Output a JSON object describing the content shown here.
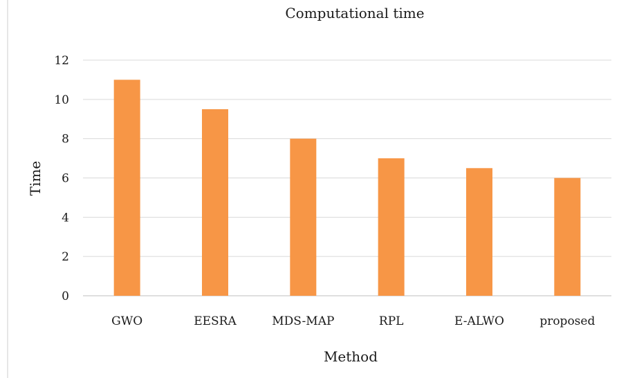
{
  "chart_data": {
    "type": "bar",
    "title": "Computational time",
    "xlabel": "Method",
    "ylabel": "Time",
    "categories": [
      "GWO",
      "EESRA",
      "MDS-MAP",
      "RPL",
      "E-ALWO",
      "proposed"
    ],
    "values": [
      11,
      9.5,
      8,
      7,
      6.5,
      6
    ],
    "ylim": [
      0,
      12
    ],
    "yticks": [
      "0",
      "2",
      "4",
      "6",
      "8",
      "10",
      "12"
    ],
    "grid": true,
    "legend": "none",
    "bar_color": "#F79646"
  }
}
